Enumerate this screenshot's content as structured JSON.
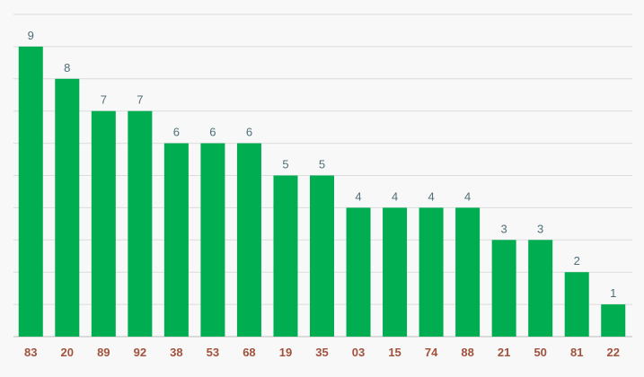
{
  "colors": {
    "bar": "#00ad50",
    "value_label": "#4e6e78",
    "category_label": "#a0523c",
    "grid": "#dcdcdc",
    "background": "#f8f8f8"
  },
  "chart_data": {
    "type": "bar",
    "title": "",
    "xlabel": "",
    "ylabel": "",
    "categories": [
      "83",
      "20",
      "89",
      "92",
      "38",
      "53",
      "68",
      "19",
      "35",
      "03",
      "15",
      "74",
      "88",
      "21",
      "50",
      "81",
      "22"
    ],
    "values": [
      9,
      8,
      7,
      7,
      6,
      6,
      6,
      5,
      5,
      4,
      4,
      4,
      4,
      3,
      3,
      2,
      1
    ],
    "ylim": [
      0,
      10
    ],
    "grid": true,
    "data_labels": true,
    "legend": "none"
  }
}
